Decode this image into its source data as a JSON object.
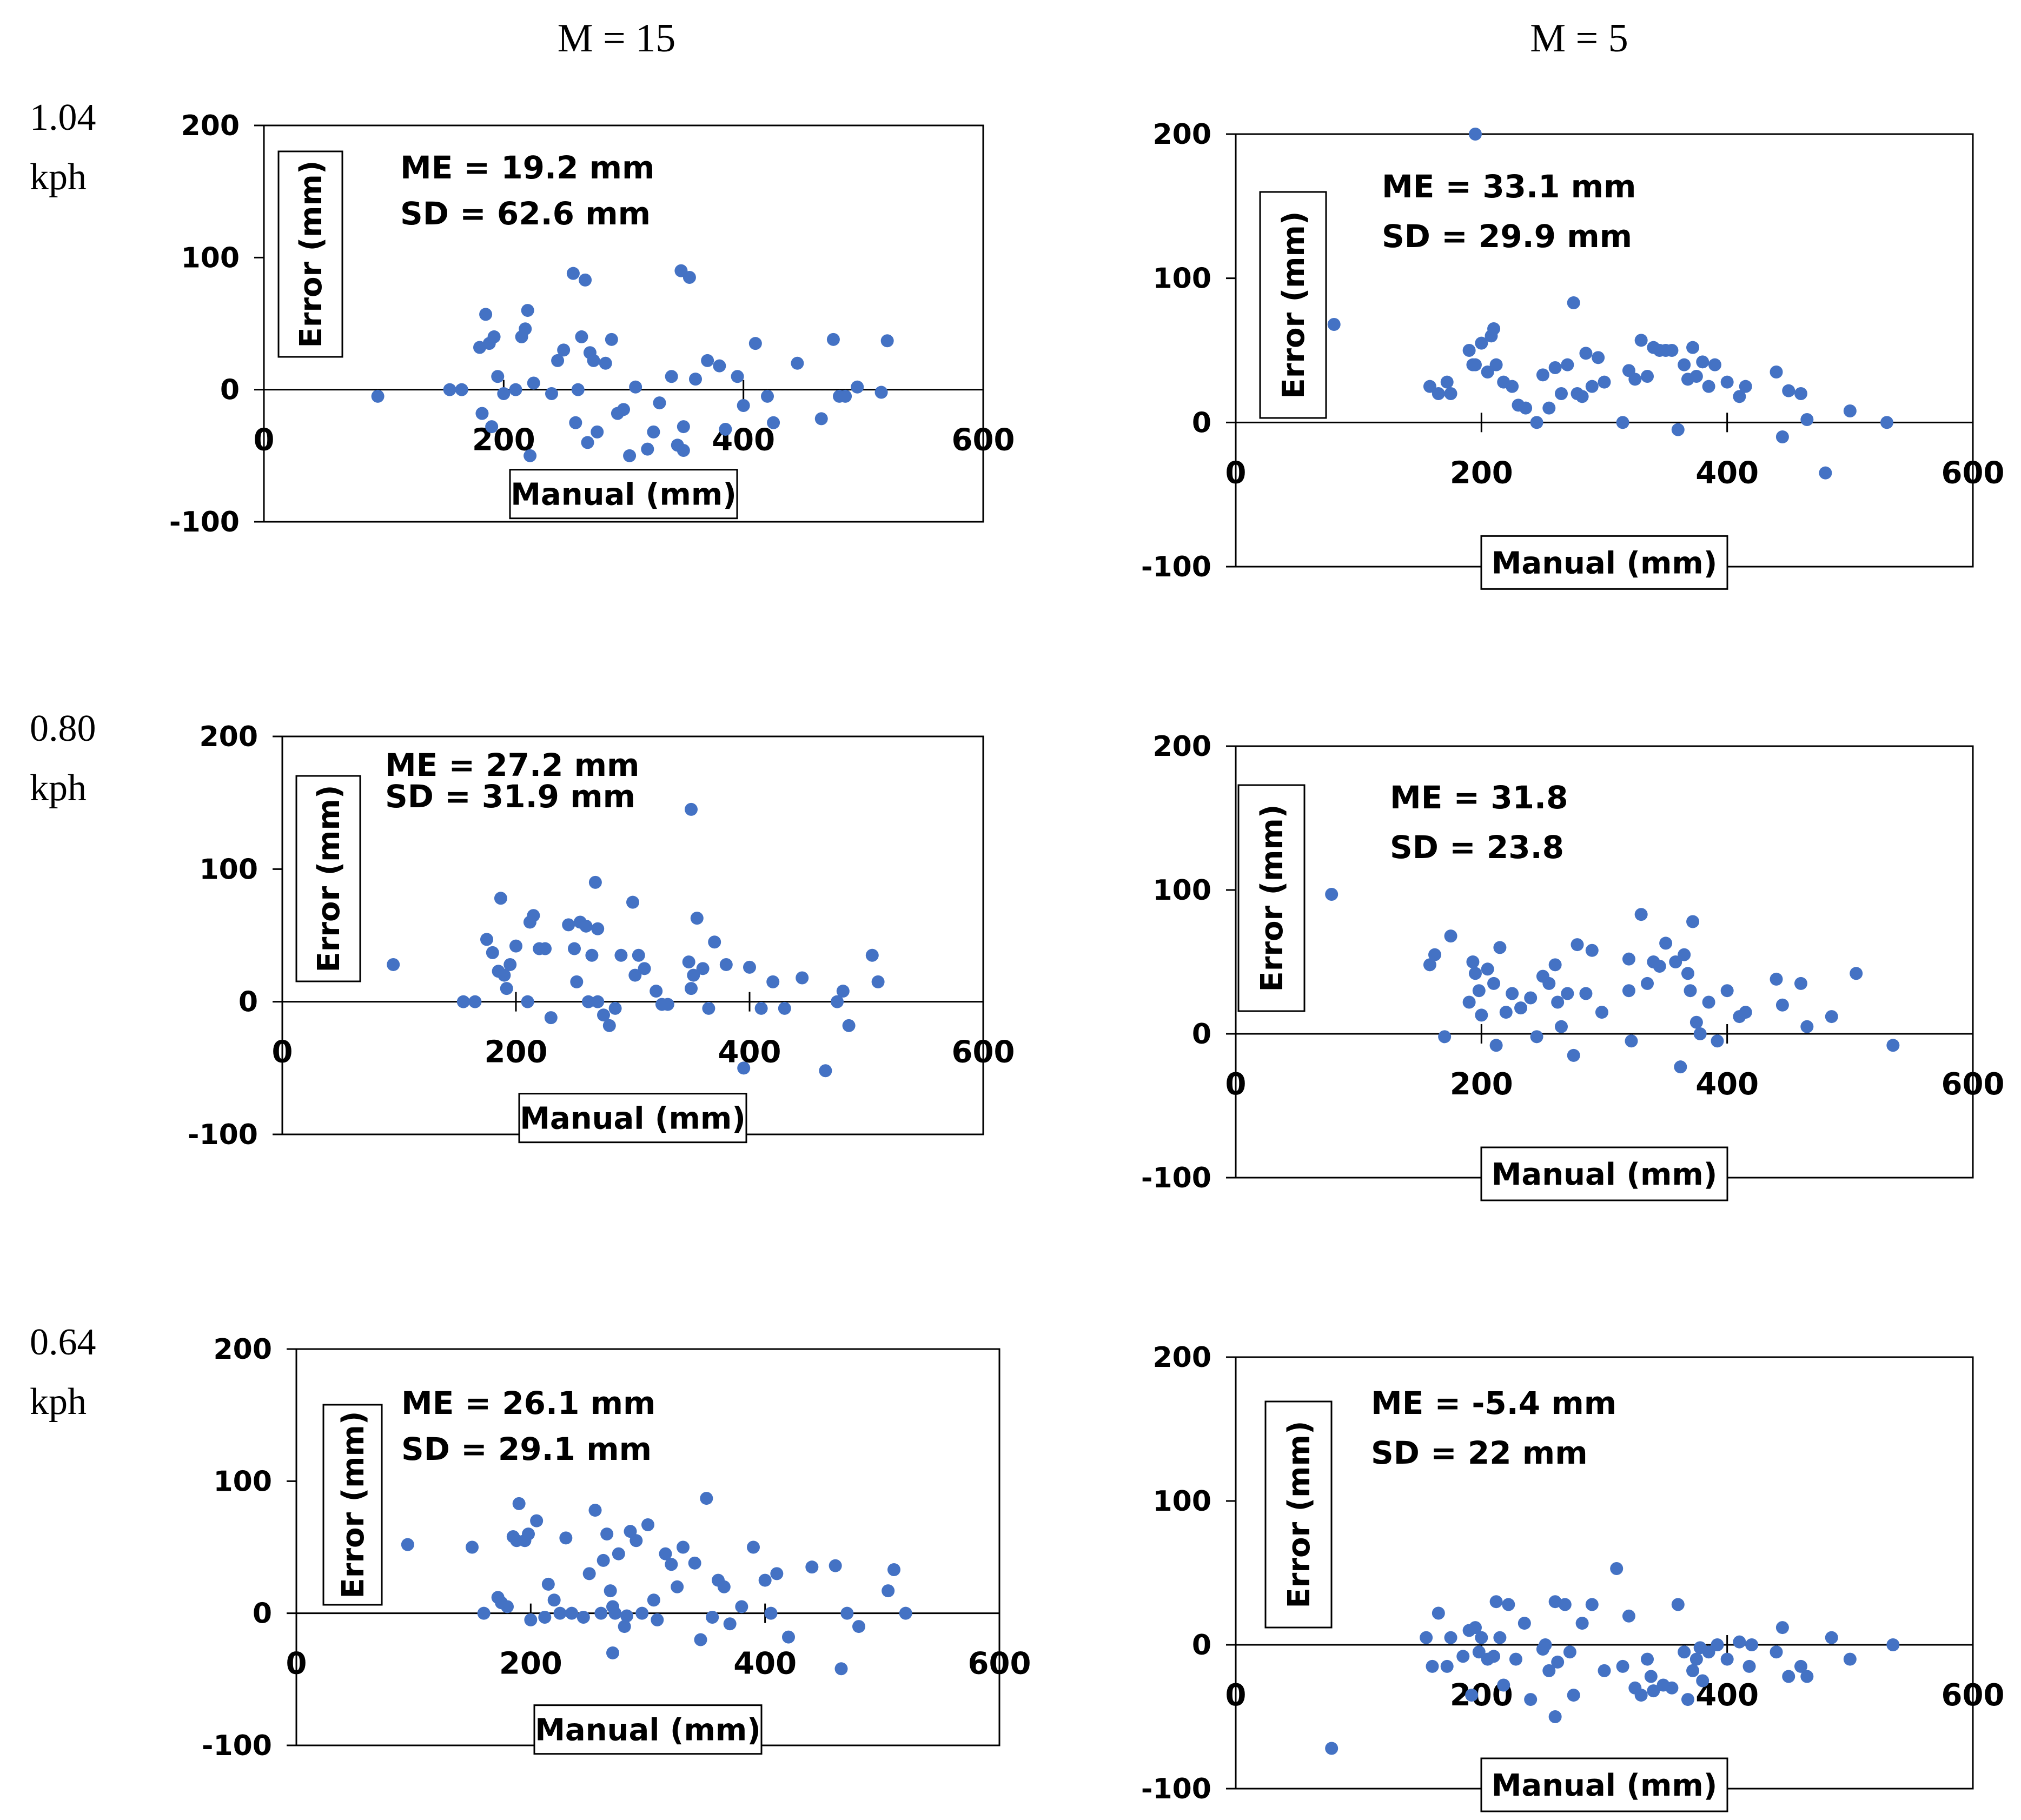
{
  "figure": {
    "col_titles": [
      "M = 15",
      "M = 5"
    ],
    "row_labels": [
      [
        "1.04",
        "kph"
      ],
      [
        "0.80",
        "kph"
      ],
      [
        "0.64",
        "kph"
      ]
    ],
    "styles": {
      "point_color": "#4472c4",
      "axis_color": "#000000"
    }
  },
  "chart_data": [
    {
      "type": "scatter",
      "row": 0,
      "col": 0,
      "title": "",
      "xlabel": "Manual (mm)",
      "ylabel": "Error (mm)",
      "xlim": [
        0,
        600
      ],
      "ylim": [
        -100,
        200
      ],
      "x_ticks": [
        "0",
        "200",
        "400",
        "600"
      ],
      "y_ticks": [
        "200",
        "100",
        "0",
        "-100"
      ],
      "annotations": [
        "ME = 19.2 mm",
        "SD = 62.6 mm"
      ],
      "x": [
        95,
        155,
        165,
        180,
        182,
        185,
        188,
        190,
        192,
        195,
        200,
        210,
        215,
        218,
        220,
        222,
        225,
        240,
        245,
        250,
        258,
        260,
        262,
        265,
        268,
        270,
        272,
        275,
        278,
        285,
        290,
        295,
        300,
        305,
        310,
        320,
        325,
        330,
        340,
        345,
        348,
        350,
        355,
        360,
        370,
        380,
        385,
        395,
        400,
        410,
        420,
        425,
        445,
        465,
        475,
        480,
        485,
        495,
        515,
        520,
        350
      ],
      "y": [
        -5,
        0,
        0,
        32,
        -18,
        57,
        35,
        -28,
        40,
        10,
        -3,
        0,
        40,
        46,
        60,
        -50,
        5,
        -3,
        22,
        30,
        88,
        -25,
        0,
        40,
        83,
        -40,
        28,
        22,
        -32,
        20,
        38,
        -18,
        -15,
        -50,
        2,
        -45,
        -32,
        -10,
        10,
        -42,
        90,
        -28,
        85,
        8,
        22,
        18,
        -30,
        10,
        -12,
        35,
        -5,
        -25,
        20,
        -22,
        38,
        -5,
        -5,
        2,
        -2,
        37,
        -46
      ],
      "annotation_box": [
        0.19,
        0.04
      ],
      "ylabel_box": [
        0.025,
        0.06
      ]
    },
    {
      "type": "scatter",
      "row": 0,
      "col": 1,
      "title": "",
      "xlabel": "Manual (mm)",
      "ylabel": "Error (mm)",
      "xlim": [
        0,
        600
      ],
      "ylim": [
        -100,
        200
      ],
      "x_ticks": [
        "0",
        "200",
        "400",
        "600"
      ],
      "y_ticks": [
        "200",
        "100",
        "0",
        "-100"
      ],
      "annotations": [
        "ME = 33.1 mm",
        "SD = 29.9 mm"
      ],
      "x": [
        80,
        158,
        165,
        172,
        175,
        190,
        193,
        195,
        200,
        205,
        208,
        210,
        212,
        218,
        225,
        230,
        236,
        245,
        250,
        255,
        260,
        265,
        270,
        275,
        278,
        282,
        285,
        290,
        295,
        300,
        315,
        320,
        325,
        330,
        335,
        340,
        345,
        350,
        355,
        360,
        365,
        368,
        372,
        375,
        380,
        385,
        390,
        400,
        410,
        415,
        440,
        445,
        450,
        460,
        465,
        500,
        530,
        480,
        195
      ],
      "y": [
        68,
        25,
        20,
        28,
        20,
        50,
        40,
        200,
        55,
        35,
        60,
        65,
        40,
        28,
        25,
        12,
        10,
        0,
        33,
        10,
        38,
        20,
        40,
        83,
        20,
        18,
        48,
        25,
        45,
        28,
        0,
        36,
        30,
        57,
        32,
        52,
        50,
        50,
        50,
        -5,
        40,
        30,
        52,
        32,
        42,
        25,
        40,
        28,
        18,
        25,
        35,
        -10,
        22,
        20,
        2,
        8,
        0,
        -35,
        40
      ],
      "annotation_box": [
        0.19,
        0.07
      ],
      "ylabel_box": [
        0.03,
        0.13
      ]
    },
    {
      "type": "scatter",
      "row": 1,
      "col": 0,
      "title": "",
      "xlabel": "Manual (mm)",
      "ylabel": "Error (mm)",
      "xlim": [
        0,
        600
      ],
      "ylim": [
        -100,
        200
      ],
      "x_ticks": [
        "0",
        "200",
        "400",
        "600"
      ],
      "y_ticks": [
        "200",
        "100",
        "0",
        "-100"
      ],
      "annotations": [
        "ME = 27.2 mm",
        "SD = 31.9 mm"
      ],
      "x": [
        95,
        155,
        165,
        175,
        180,
        185,
        187,
        190,
        192,
        195,
        200,
        210,
        212,
        215,
        220,
        225,
        230,
        245,
        250,
        252,
        255,
        260,
        262,
        265,
        268,
        270,
        275,
        280,
        285,
        290,
        300,
        302,
        305,
        310,
        320,
        325,
        330,
        348,
        350,
        352,
        355,
        360,
        365,
        370,
        380,
        395,
        400,
        410,
        420,
        430,
        445,
        465,
        475,
        480,
        485,
        505,
        510,
        350,
        270
      ],
      "y": [
        28,
        0,
        0,
        47,
        37,
        23,
        78,
        20,
        10,
        28,
        42,
        0,
        60,
        65,
        40,
        40,
        -12,
        58,
        40,
        15,
        60,
        57,
        0,
        35,
        90,
        0,
        -10,
        -18,
        -5,
        35,
        75,
        20,
        35,
        25,
        8,
        -2,
        -2,
        30,
        145,
        20,
        63,
        25,
        -5,
        45,
        28,
        -50,
        26,
        -5,
        15,
        -5,
        18,
        -52,
        0,
        8,
        -18,
        35,
        15,
        10,
        55
      ],
      "annotation_box": [
        0.15,
        0.03
      ],
      "ylabel_box": [
        0.02,
        0.1
      ]
    },
    {
      "type": "scatter",
      "row": 1,
      "col": 1,
      "title": "",
      "xlabel": "Manual (mm)",
      "ylabel": "Error (mm)",
      "xlim": [
        0,
        600
      ],
      "ylim": [
        -100,
        200
      ],
      "x_ticks": [
        "0",
        "200",
        "400",
        "600"
      ],
      "y_ticks": [
        "200",
        "100",
        "0",
        "-100"
      ],
      "annotations": [
        "ME = 31.8",
        "SD = 23.8"
      ],
      "x": [
        78,
        158,
        162,
        170,
        175,
        190,
        193,
        195,
        198,
        200,
        205,
        210,
        212,
        215,
        220,
        225,
        232,
        240,
        245,
        250,
        255,
        260,
        262,
        265,
        270,
        275,
        278,
        285,
        290,
        298,
        320,
        322,
        330,
        335,
        340,
        345,
        350,
        358,
        362,
        365,
        368,
        370,
        372,
        375,
        378,
        385,
        392,
        400,
        410,
        415,
        440,
        445,
        460,
        465,
        485,
        505,
        535,
        320
      ],
      "y": [
        97,
        48,
        55,
        -2,
        68,
        22,
        50,
        42,
        30,
        13,
        45,
        35,
        -8,
        60,
        15,
        28,
        18,
        25,
        -2,
        40,
        35,
        48,
        22,
        5,
        28,
        -15,
        62,
        28,
        58,
        15,
        30,
        -5,
        83,
        35,
        50,
        47,
        63,
        50,
        -23,
        55,
        42,
        30,
        78,
        8,
        0,
        22,
        -5,
        30,
        12,
        15,
        38,
        20,
        35,
        5,
        12,
        42,
        -8,
        52
      ],
      "annotation_box": [
        0.2,
        0.05
      ],
      "ylabel_box": [
        0.0,
        0.1
      ]
    },
    {
      "type": "scatter",
      "row": 2,
      "col": 0,
      "title": "",
      "xlabel": "Manual (mm)",
      "ylabel": "Error (mm)",
      "xlim": [
        0,
        600
      ],
      "ylim": [
        -100,
        200
      ],
      "x_ticks": [
        "0",
        "200",
        "400",
        "600"
      ],
      "y_ticks": [
        "200",
        "100",
        "0",
        "-100"
      ],
      "annotations": [
        "ME = 26.1 mm",
        "SD = 29.1 mm"
      ],
      "x": [
        95,
        150,
        160,
        172,
        175,
        180,
        185,
        188,
        190,
        195,
        198,
        200,
        205,
        212,
        215,
        220,
        225,
        230,
        235,
        245,
        250,
        255,
        260,
        262,
        265,
        268,
        270,
        272,
        275,
        280,
        282,
        285,
        290,
        295,
        300,
        305,
        308,
        315,
        320,
        325,
        330,
        340,
        345,
        350,
        355,
        360,
        365,
        370,
        380,
        390,
        400,
        405,
        410,
        420,
        440,
        460,
        465,
        470,
        480,
        505,
        510,
        520,
        270
      ],
      "y": [
        52,
        50,
        0,
        12,
        8,
        5,
        58,
        55,
        83,
        55,
        60,
        -5,
        70,
        -3,
        22,
        10,
        0,
        57,
        0,
        -3,
        30,
        78,
        0,
        40,
        60,
        17,
        -30,
        0,
        45,
        -10,
        -2,
        62,
        55,
        0,
        67,
        10,
        -5,
        45,
        37,
        20,
        50,
        38,
        -20,
        87,
        -3,
        25,
        20,
        -8,
        5,
        50,
        25,
        0,
        30,
        -18,
        35,
        36,
        -42,
        0,
        -10,
        17,
        33,
        0,
        5
      ],
      "annotation_box": [
        0.15,
        0.04
      ],
      "ylabel_box": [
        0.04,
        0.13
      ]
    },
    {
      "type": "scatter",
      "row": 2,
      "col": 1,
      "title": "",
      "xlabel": "Manual (mm)",
      "ylabel": "Error (mm)",
      "xlim": [
        0,
        600
      ],
      "ylim": [
        -100,
        200
      ],
      "x_ticks": [
        "0",
        "200",
        "400",
        "600"
      ],
      "y_ticks": [
        "200",
        "100",
        "0",
        "-100"
      ],
      "annotations": [
        "ME = -5.4 mm",
        "SD = 22 mm"
      ],
      "x": [
        78,
        155,
        160,
        165,
        172,
        175,
        185,
        190,
        192,
        195,
        198,
        200,
        205,
        210,
        212,
        215,
        218,
        222,
        228,
        235,
        240,
        250,
        252,
        255,
        260,
        262,
        268,
        272,
        275,
        282,
        290,
        300,
        310,
        315,
        320,
        325,
        330,
        335,
        338,
        340,
        348,
        355,
        360,
        365,
        368,
        372,
        375,
        378,
        380,
        385,
        392,
        400,
        410,
        418,
        420,
        440,
        445,
        450,
        460,
        465,
        485,
        500,
        535,
        260
      ],
      "y": [
        -72,
        5,
        -15,
        22,
        -15,
        5,
        -8,
        10,
        -35,
        12,
        -5,
        5,
        -10,
        -8,
        30,
        5,
        -28,
        28,
        -10,
        15,
        -38,
        -3,
        0,
        -18,
        30,
        -12,
        28,
        -5,
        -35,
        15,
        28,
        -18,
        53,
        -15,
        20,
        -30,
        -35,
        -10,
        -22,
        -32,
        -28,
        -30,
        28,
        -5,
        -38,
        -18,
        -10,
        -2,
        -25,
        -5,
        0,
        -10,
        2,
        -15,
        0,
        -5,
        12,
        -22,
        -15,
        -22,
        5,
        -10,
        0,
        -50
      ],
      "annotation_box": [
        0.17,
        0.05
      ],
      "ylabel_box": [
        0.0,
        0.15
      ]
    }
  ]
}
